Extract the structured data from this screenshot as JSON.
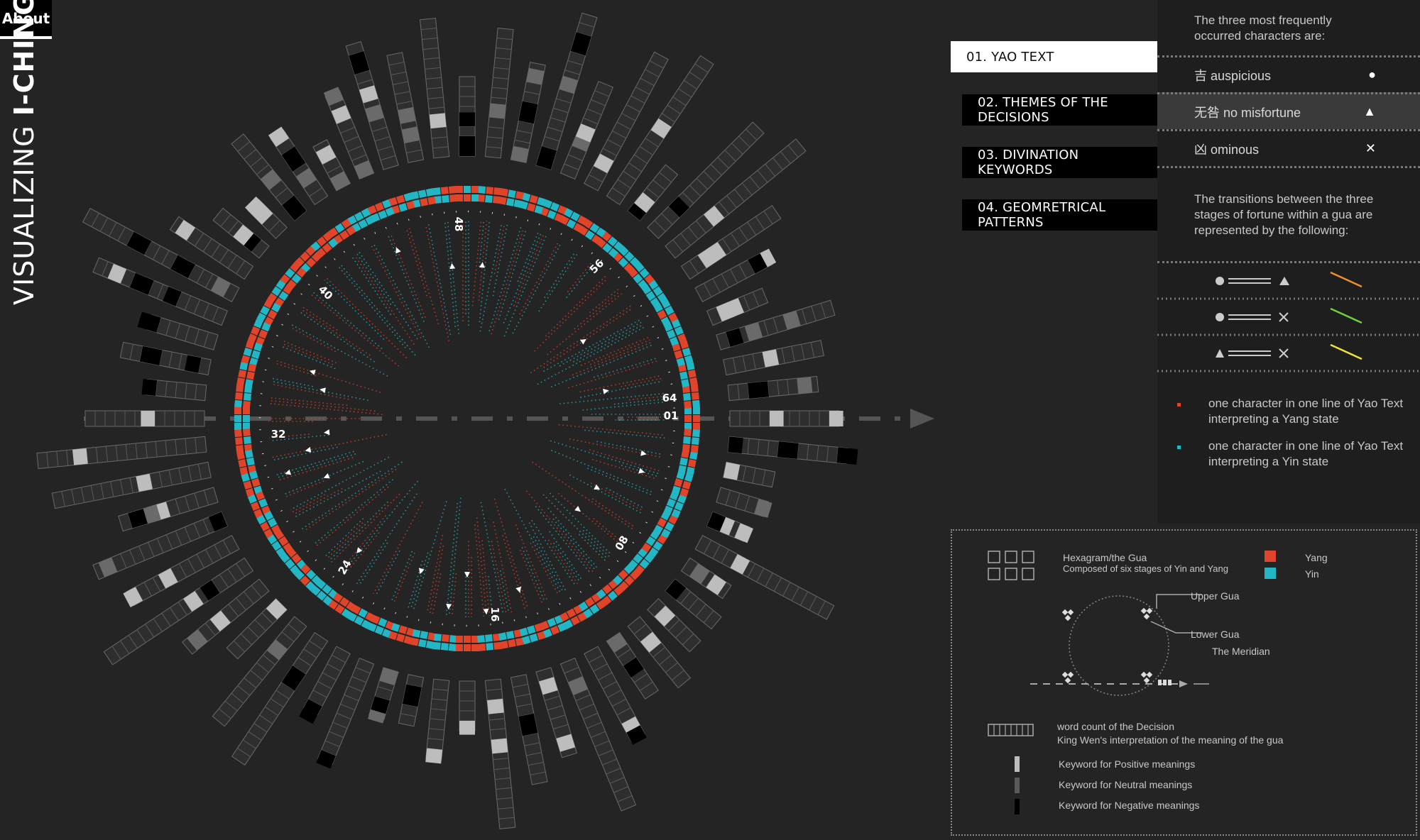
{
  "about_label": "About",
  "title": {
    "prefix": "VISUALIZING ",
    "strong": "I-CHING"
  },
  "nav_tabs": [
    {
      "label": "01. YAO TEXT",
      "active": true
    },
    {
      "label": "02. THEMES OF THE DECISIONS",
      "active": false
    },
    {
      "label": "03. DIVINATION KEYWORDS",
      "active": false
    },
    {
      "label": "04. GEOMRETRICAL PATTERNS",
      "active": false
    }
  ],
  "panel": {
    "intro": "The three most frequently occurred characters are:",
    "characters": [
      {
        "label": "吉 auspicious",
        "symbol_icon": "circle-icon"
      },
      {
        "label": "无咎 no misfortune",
        "symbol_icon": "triangle-icon"
      },
      {
        "label": "凶 ominous",
        "symbol_icon": "cross-icon"
      }
    ],
    "transitions_intro": "The transitions between the three stages of fortune within a gua are represented by the following:",
    "transitions": [
      {
        "from": "circle-icon",
        "to": "triangle-icon",
        "color": "#f0902a"
      },
      {
        "from": "circle-icon",
        "to": "cross-icon",
        "color": "#6ed13a"
      },
      {
        "from": "triangle-icon",
        "to": "cross-icon",
        "color": "#f0e23a"
      }
    ],
    "dot_legend": [
      {
        "text": "one character in one line of Yao Text interpreting a Yang state",
        "color": "#e0442a"
      },
      {
        "text": "one character in one line of Yao Text interpreting a Yin state",
        "color": "#23b7c6"
      }
    ]
  },
  "legend": {
    "hexagram_title": "Hexagram/the Gua",
    "hexagram_sub": "Composed of six stages of Yin and Yang",
    "yang_label": "Yang",
    "yin_label": "Yin",
    "upper_gua": "Upper Gua",
    "lower_gua": "Lower Gua",
    "meridian": "The Meridian",
    "word_count_title": "word count of the Decision",
    "word_count_sub": "King Wen's interpretation of the meaning of the gua",
    "keywords": [
      {
        "label": "Keyword for Positive meanings",
        "color": "#bdbdbd"
      },
      {
        "label": "Keyword for Neutral meanings",
        "color": "#5a5a5a"
      },
      {
        "label": "Keyword for Negative meanings",
        "color": "#000000"
      }
    ]
  },
  "colors": {
    "yang": "#e0442a",
    "yin": "#23b7c6",
    "background": "#242424"
  },
  "chart_data": {
    "type": "radial",
    "hexagram_count": 64,
    "ring_labels": [
      "01",
      "08",
      "16",
      "24",
      "32",
      "40",
      "48",
      "56",
      "64"
    ]
  }
}
